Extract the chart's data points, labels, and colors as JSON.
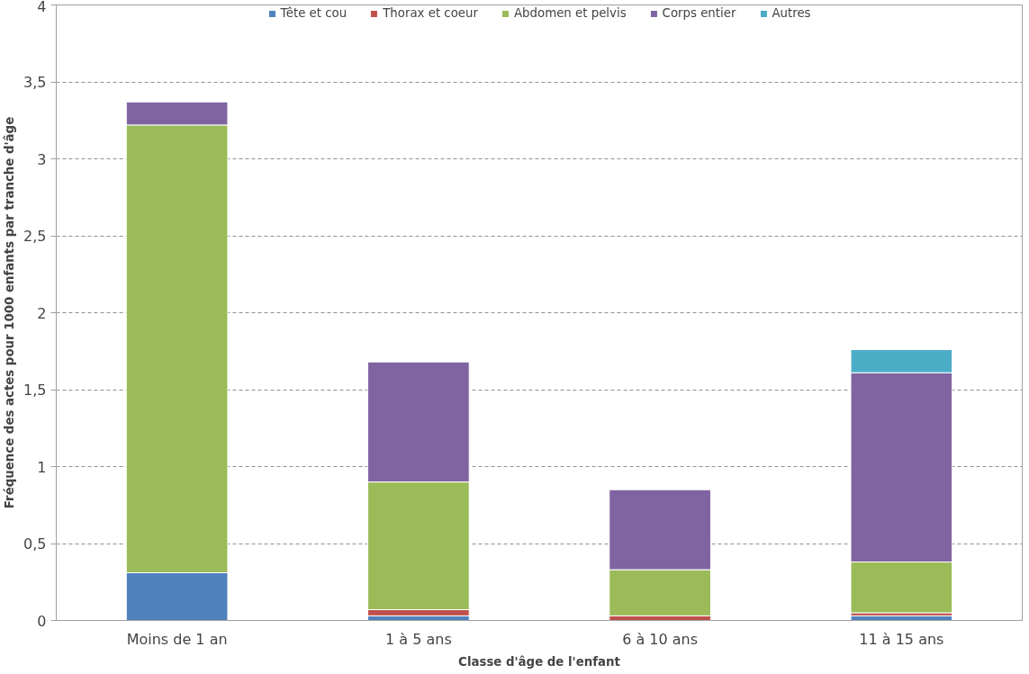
{
  "chart_data": {
    "type": "bar",
    "stacked": true,
    "xlabel": "Classe d'âge de l'enfant",
    "ylabel": "Fréquence des actes pour 1000 enfants par tranche d'âge",
    "categories": [
      "Moins de 1 an",
      "1 à 5 ans",
      "6 à 10 ans",
      "11 à 15 ans"
    ],
    "series": [
      {
        "name": "Tête et cou",
        "color": "#4f81bd",
        "values": [
          0.31,
          0.03,
          null,
          0.03
        ]
      },
      {
        "name": "Thorax et coeur",
        "color": "#c0504d",
        "values": [
          null,
          0.04,
          0.03,
          0.02
        ]
      },
      {
        "name": "Abdomen et pelvis",
        "color": "#9bbb59",
        "values": [
          2.91,
          0.83,
          0.3,
          0.33
        ]
      },
      {
        "name": "Corps entier",
        "color": "#8064a2",
        "values": [
          0.15,
          0.78,
          0.52,
          1.23
        ]
      },
      {
        "name": "Autres",
        "color": "#4bacc6",
        "values": [
          null,
          null,
          null,
          0.15
        ]
      }
    ],
    "ylim": [
      0,
      4
    ],
    "yticks": [
      0,
      {
        "value": 0.5,
        "label": "0,5"
      },
      1,
      {
        "value": 1.5,
        "label": "1,5"
      },
      2,
      {
        "value": 2.5,
        "label": "2,5"
      },
      3,
      {
        "value": 3.5,
        "label": "3,5"
      },
      4
    ],
    "grid": "y",
    "legend": "top"
  }
}
